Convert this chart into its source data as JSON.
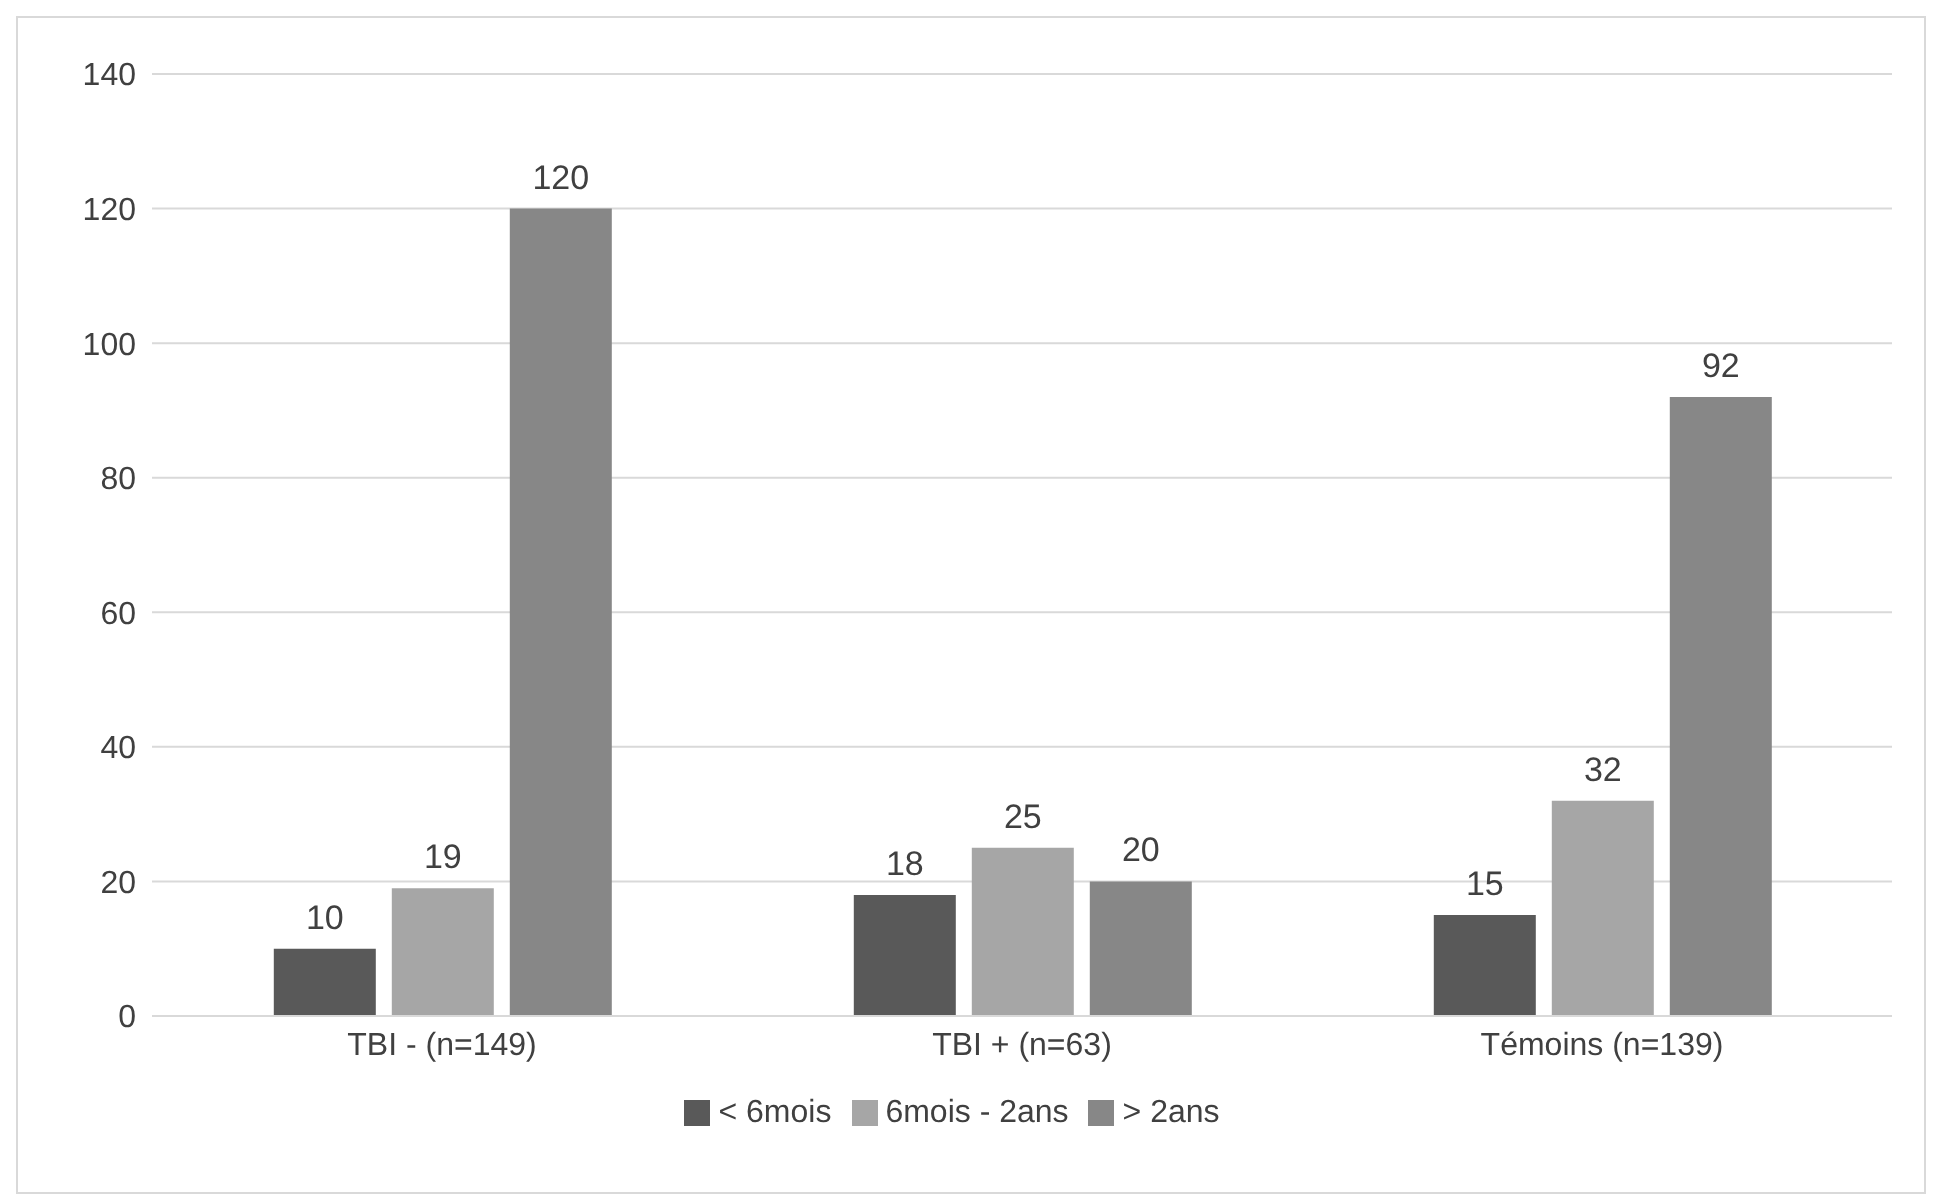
{
  "chart_data": {
    "type": "bar",
    "categories": [
      "TBI - (n=149)",
      "TBI + (n=63)",
      "Témoins (n=139)"
    ],
    "series": [
      {
        "name": "< 6mois",
        "color": "#595959",
        "values": [
          10,
          18,
          15
        ]
      },
      {
        "name": "6mois - 2ans",
        "color": "#a6a6a6",
        "values": [
          19,
          25,
          32
        ]
      },
      {
        "name": "> 2ans",
        "color": "#878787",
        "values": [
          120,
          20,
          92
        ]
      }
    ],
    "ylim": [
      0,
      140
    ],
    "yticks": [
      0,
      20,
      40,
      60,
      80,
      100,
      120,
      140
    ],
    "grid": "y",
    "legend": "bottom",
    "data_labels": true
  }
}
